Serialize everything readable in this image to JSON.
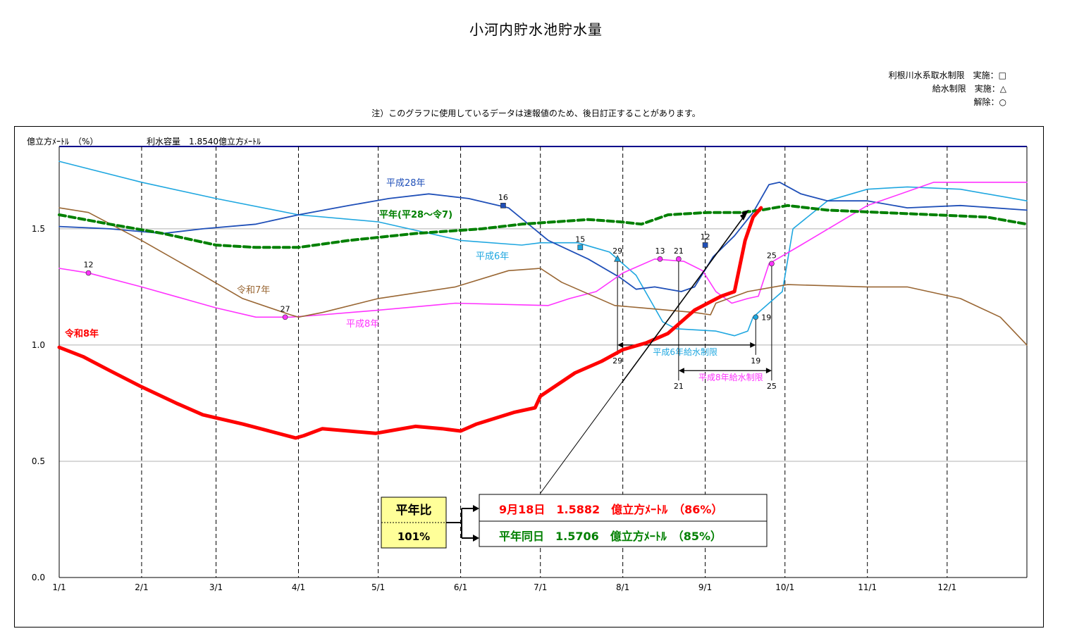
{
  "title": "小河内貯水池貯水量",
  "legend": {
    "line1": "利根川水系取水制限　実施：□",
    "line2": "給水制限　実施：△",
    "line3": "解除：○"
  },
  "note": "注）このグラフに使用しているデータは速報値のため、後日訂正することがあります。",
  "colors": {
    "r8": "#ff0000",
    "avg": "#008000",
    "r7": "#996633",
    "h28": "#1f4fb8",
    "h6": "#1fa7e0",
    "h8": "#ff33ff",
    "capacity": "#00008b"
  },
  "info": {
    "ratio_label": "平年比",
    "ratio_value": "101%",
    "current": "9月18日　1.5882　億立方ﾒｰﾄﾙ　（86%）",
    "normal": "平年同日　1.5706　億立方ﾒｰﾄﾙ　（85%）"
  },
  "chart_data": {
    "type": "line",
    "ylabel": "億立方ﾒｰﾄﾙ　（%）",
    "capacity_label": "利水容量　1.8540億立方ﾒｰﾄﾙ",
    "capacity": 1.854,
    "ylim": [
      0,
      1.854
    ],
    "yticks": [
      "0.0",
      "0.5",
      "1.0",
      "1.5"
    ],
    "xticks": [
      "1/1",
      "2/1",
      "3/1",
      "4/1",
      "5/1",
      "6/1",
      "7/1",
      "8/1",
      "9/1",
      "10/1",
      "11/1",
      "12/1"
    ],
    "xtick_days": [
      1,
      32,
      60,
      91,
      121,
      152,
      182,
      213,
      244,
      274,
      305,
      335
    ],
    "series": [
      {
        "key": "h6",
        "name": "平成6年",
        "points": [
          [
            1,
            1.79
          ],
          [
            32,
            1.7
          ],
          [
            60,
            1.63
          ],
          [
            91,
            1.56
          ],
          [
            121,
            1.53
          ],
          [
            152,
            1.45
          ],
          [
            175,
            1.43
          ],
          [
            182,
            1.44
          ],
          [
            196,
            1.44
          ],
          [
            202,
            1.42
          ],
          [
            208,
            1.4
          ],
          [
            218,
            1.3
          ],
          [
            228,
            1.1
          ],
          [
            233,
            1.07
          ],
          [
            248,
            1.06
          ],
          [
            255,
            1.04
          ],
          [
            260,
            1.06
          ],
          [
            262,
            1.12
          ],
          [
            270,
            1.2
          ],
          [
            273,
            1.23
          ],
          [
            277,
            1.5
          ],
          [
            290,
            1.62
          ],
          [
            305,
            1.67
          ],
          [
            320,
            1.68
          ],
          [
            340,
            1.67
          ],
          [
            365,
            1.62
          ]
        ]
      },
      {
        "key": "h28",
        "name": "平成28年",
        "points": [
          [
            1,
            1.51
          ],
          [
            20,
            1.5
          ],
          [
            40,
            1.48
          ],
          [
            55,
            1.5
          ],
          [
            75,
            1.52
          ],
          [
            91,
            1.56
          ],
          [
            110,
            1.6
          ],
          [
            125,
            1.63
          ],
          [
            140,
            1.65
          ],
          [
            155,
            1.63
          ],
          [
            170,
            1.59
          ],
          [
            185,
            1.45
          ],
          [
            200,
            1.37
          ],
          [
            212,
            1.29
          ],
          [
            218,
            1.24
          ],
          [
            225,
            1.25
          ],
          [
            235,
            1.23
          ],
          [
            240,
            1.25
          ],
          [
            247,
            1.38
          ],
          [
            255,
            1.47
          ],
          [
            262,
            1.57
          ],
          [
            268,
            1.69
          ],
          [
            272,
            1.7
          ],
          [
            280,
            1.65
          ],
          [
            290,
            1.62
          ],
          [
            305,
            1.62
          ],
          [
            320,
            1.59
          ],
          [
            340,
            1.6
          ],
          [
            365,
            1.58
          ]
        ]
      },
      {
        "key": "h8",
        "name": "平成8年",
        "points": [
          [
            1,
            1.33
          ],
          [
            12,
            1.31
          ],
          [
            32,
            1.25
          ],
          [
            60,
            1.16
          ],
          [
            75,
            1.12
          ],
          [
            88,
            1.12
          ],
          [
            100,
            1.13
          ],
          [
            121,
            1.15
          ],
          [
            150,
            1.18
          ],
          [
            185,
            1.17
          ],
          [
            193,
            1.2
          ],
          [
            203,
            1.23
          ],
          [
            213,
            1.31
          ],
          [
            225,
            1.37
          ],
          [
            236,
            1.36
          ],
          [
            243,
            1.32
          ],
          [
            248,
            1.23
          ],
          [
            254,
            1.18
          ],
          [
            260,
            1.2
          ],
          [
            264,
            1.21
          ],
          [
            268,
            1.35
          ],
          [
            280,
            1.43
          ],
          [
            305,
            1.6
          ],
          [
            330,
            1.7
          ],
          [
            365,
            1.7
          ]
        ]
      },
      {
        "key": "r7",
        "name": "令和7年",
        "points": [
          [
            1,
            1.59
          ],
          [
            12,
            1.57
          ],
          [
            32,
            1.45
          ],
          [
            55,
            1.3
          ],
          [
            70,
            1.2
          ],
          [
            88,
            1.13
          ],
          [
            91,
            1.12
          ],
          [
            100,
            1.14
          ],
          [
            121,
            1.2
          ],
          [
            150,
            1.25
          ],
          [
            170,
            1.32
          ],
          [
            182,
            1.33
          ],
          [
            190,
            1.27
          ],
          [
            200,
            1.22
          ],
          [
            210,
            1.17
          ],
          [
            220,
            1.16
          ],
          [
            230,
            1.15
          ],
          [
            240,
            1.14
          ],
          [
            246,
            1.13
          ],
          [
            248,
            1.18
          ],
          [
            260,
            1.23
          ],
          [
            275,
            1.26
          ],
          [
            305,
            1.25
          ],
          [
            320,
            1.25
          ],
          [
            340,
            1.2
          ],
          [
            355,
            1.12
          ],
          [
            365,
            1.0
          ]
        ]
      },
      {
        "key": "avg",
        "name": "平年(平28～令7)",
        "points": [
          [
            1,
            1.56
          ],
          [
            20,
            1.52
          ],
          [
            40,
            1.48
          ],
          [
            60,
            1.43
          ],
          [
            75,
            1.42
          ],
          [
            91,
            1.42
          ],
          [
            110,
            1.45
          ],
          [
            135,
            1.48
          ],
          [
            160,
            1.5
          ],
          [
            175,
            1.52
          ],
          [
            200,
            1.54
          ],
          [
            212,
            1.53
          ],
          [
            220,
            1.52
          ],
          [
            230,
            1.56
          ],
          [
            245,
            1.57
          ],
          [
            258,
            1.57
          ],
          [
            265,
            1.58
          ],
          [
            275,
            1.6
          ],
          [
            290,
            1.58
          ],
          [
            310,
            1.57
          ],
          [
            330,
            1.56
          ],
          [
            350,
            1.55
          ],
          [
            365,
            1.52
          ]
        ]
      },
      {
        "key": "r8",
        "name": "令和8年",
        "points": [
          [
            1,
            0.99
          ],
          [
            10,
            0.95
          ],
          [
            20,
            0.89
          ],
          [
            32,
            0.82
          ],
          [
            45,
            0.75
          ],
          [
            55,
            0.7
          ],
          [
            70,
            0.66
          ],
          [
            80,
            0.63
          ],
          [
            90,
            0.6
          ],
          [
            93,
            0.61
          ],
          [
            100,
            0.64
          ],
          [
            110,
            0.63
          ],
          [
            120,
            0.62
          ],
          [
            125,
            0.63
          ],
          [
            135,
            0.65
          ],
          [
            145,
            0.64
          ],
          [
            152,
            0.63
          ],
          [
            158,
            0.66
          ],
          [
            172,
            0.71
          ],
          [
            180,
            0.73
          ],
          [
            182,
            0.78
          ],
          [
            195,
            0.88
          ],
          [
            205,
            0.93
          ],
          [
            213,
            0.98
          ],
          [
            222,
            1.01
          ],
          [
            230,
            1.05
          ],
          [
            240,
            1.15
          ],
          [
            250,
            1.21
          ],
          [
            255,
            1.23
          ],
          [
            259,
            1.45
          ],
          [
            262,
            1.55
          ],
          [
            265,
            1.59
          ]
        ]
      }
    ],
    "annotations": [
      {
        "label": "12",
        "series": "h8",
        "x": 12,
        "y": 1.31,
        "marker": "circle",
        "fill": "#ff33ff"
      },
      {
        "label": "27",
        "series": "h8",
        "x": 86,
        "y": 1.12,
        "marker": "circle",
        "fill": "#ff33ff"
      },
      {
        "label": "16",
        "series": "h28",
        "x": 168,
        "y": 1.6,
        "marker": "square",
        "fill": "#1f4fb8"
      },
      {
        "label": "15",
        "series": "h6",
        "x": 197,
        "y": 1.42,
        "marker": "square",
        "fill": "#1fa7e0"
      },
      {
        "label": "29",
        "series": "h6",
        "x": 211,
        "y": 1.37,
        "marker": "triangle",
        "fill": "#1fa7e0"
      },
      {
        "label": "13",
        "series": "h8",
        "x": 227,
        "y": 1.37,
        "marker": "circle",
        "fill": "#ff33ff"
      },
      {
        "label": "21",
        "series": "h8",
        "x": 234,
        "y": 1.37,
        "marker": "circle",
        "fill": "#ff33ff"
      },
      {
        "label": "12",
        "series": "h28",
        "x": 244,
        "y": 1.43,
        "marker": "square",
        "fill": "#1f4fb8"
      },
      {
        "label": "25",
        "series": "h8",
        "x": 269,
        "y": 1.35,
        "marker": "circle",
        "fill": "#ff33ff"
      },
      {
        "label": "19",
        "series": "h6",
        "x": 263,
        "y": 1.12,
        "marker": "circle",
        "fill": "#1fa7e0"
      }
    ],
    "restrictions": [
      {
        "label": "平成6年給水制限",
        "start": 211,
        "end": 263,
        "y": 1.0,
        "start_label": "29",
        "end_label": "19",
        "color": "#1fa7e0"
      },
      {
        "label": "平成8年給水制限",
        "start": 234,
        "end": 269,
        "y": 0.89,
        "start_label": "21",
        "end_label": "25",
        "color": "#ff33ff"
      }
    ]
  }
}
